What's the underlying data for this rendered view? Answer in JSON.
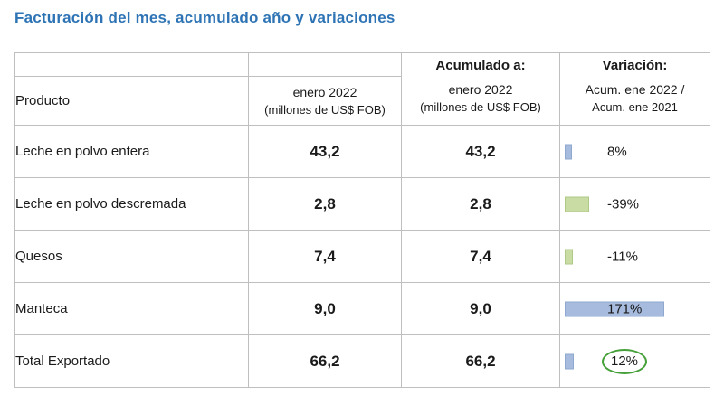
{
  "page_title": "Facturación del mes, acumulado año y variaciones",
  "colors": {
    "title": "#2E74B5",
    "green_value": "#79B63F",
    "blue_value": "#2D5986",
    "bar_positive": "#A6BBDD",
    "bar_negative": "#C9DCA4",
    "circle_annotation": "#45A039",
    "border": "#BFBFBF"
  },
  "table": {
    "headers": {
      "product": "Producto",
      "month_line1": "enero 2022",
      "month_line2": "(millones de US$ FOB)",
      "accum_top": "Acumulado a:",
      "accum_line1": "enero 2022",
      "accum_line2": "(millones de US$ FOB)",
      "variation_top": "Variación:",
      "variation_line1": "Acum. ene 2022 /",
      "variation_line2": "Acum. ene 2021"
    },
    "rows": [
      {
        "product": "Leche en polvo entera",
        "month_value": "43,2",
        "accum_value": "43,2",
        "variation_pct": 8,
        "variation_label": "8%",
        "circled": false
      },
      {
        "product": "Leche en polvo descremada",
        "month_value": "2,8",
        "accum_value": "2,8",
        "variation_pct": -39,
        "variation_label": "-39%",
        "circled": false
      },
      {
        "product": "Quesos",
        "month_value": "7,4",
        "accum_value": "7,4",
        "variation_pct": -11,
        "variation_label": "-11%",
        "circled": false
      },
      {
        "product": "Manteca",
        "month_value": "9,0",
        "accum_value": "9,0",
        "variation_pct": 171,
        "variation_label": "171%",
        "circled": false
      },
      {
        "product": "Total Exportado",
        "month_value": "66,2",
        "accum_value": "66,2",
        "variation_pct": 12,
        "variation_label": "12%",
        "circled": true
      }
    ]
  },
  "chart_data": {
    "type": "table",
    "title": "Facturación del mes, acumulado año y variaciones",
    "columns": [
      "Producto",
      "enero 2022 (millones de US$ FOB)",
      "Acumulado a: enero 2022 (millones de US$ FOB)",
      "Variación: Acum. ene 2022 / Acum. ene 2021"
    ],
    "rows": [
      [
        "Leche en polvo entera",
        43.2,
        43.2,
        "8%"
      ],
      [
        "Leche en polvo descremada",
        2.8,
        2.8,
        "-39%"
      ],
      [
        "Quesos",
        7.4,
        7.4,
        "-11%"
      ],
      [
        "Manteca",
        9.0,
        9.0,
        "171%"
      ],
      [
        "Total Exportado",
        66.2,
        66.2,
        "12%"
      ]
    ],
    "variation_pct": [
      8,
      -39,
      -11,
      171,
      12
    ],
    "bar_style": "data bars in variation column: blue for positive, green for negative, length proportional to magnitude",
    "annotation": "the 12% value in the Total Exportado row is circled with a green ellipse"
  }
}
